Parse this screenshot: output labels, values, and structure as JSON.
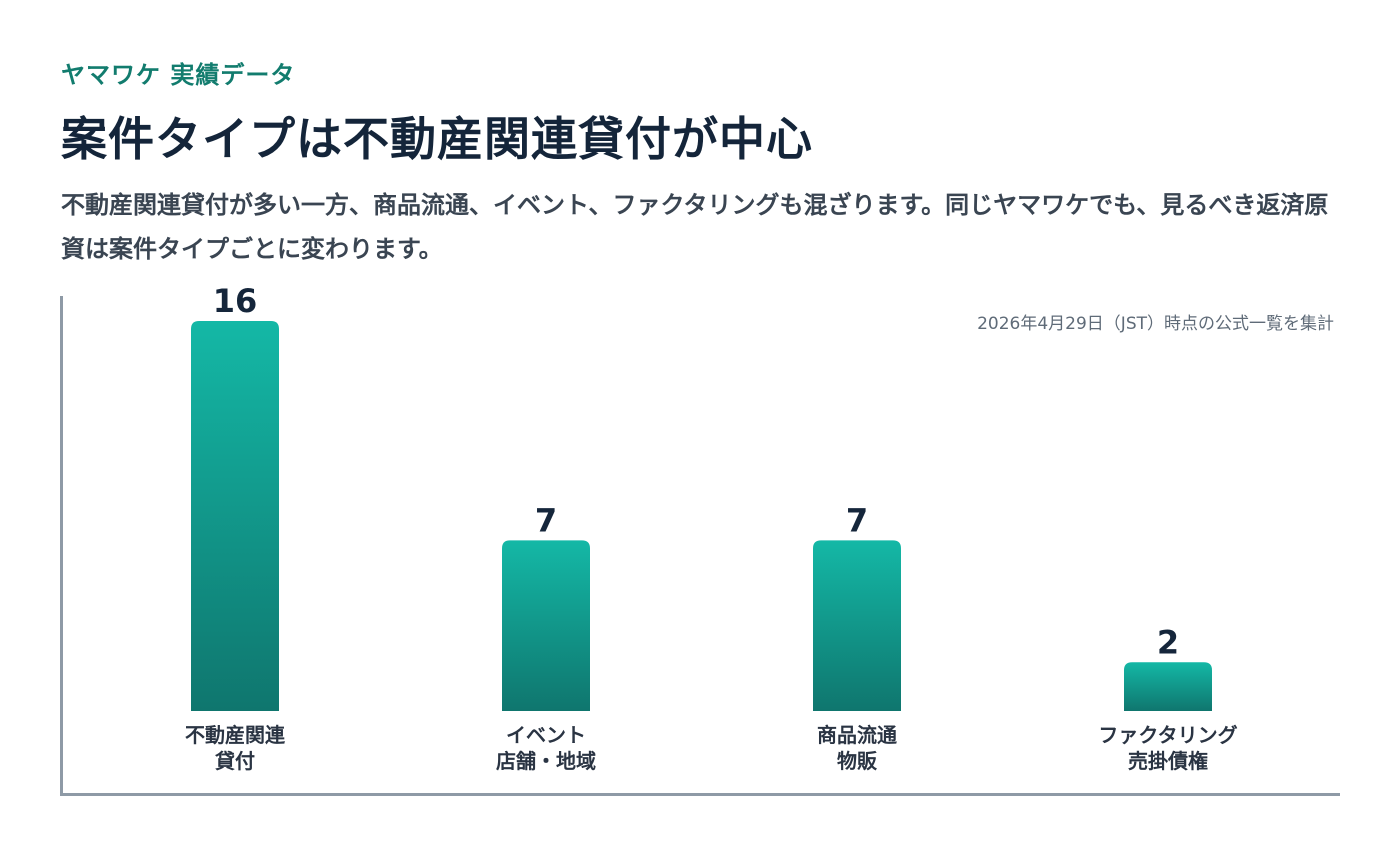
{
  "header": {
    "eyebrow": "ヤマワケ 実績データ",
    "title": "案件タイプは不動産関連貸付が中心",
    "subtitle": "不動産関連貸付が多い一方、商品流通、イベント、ファクタリングも混ざります。同じヤマワケでも、見るべき返済原資は案件タイプごとに変わります。"
  },
  "source_note": "2026年4月29日（JST）時点の公式一覧を集計",
  "colors": {
    "accent": "#127c6e",
    "bar_top": "#14b8a6",
    "bar_bottom": "#0f766e",
    "axis": "#8e9aa6"
  },
  "chart_data": {
    "type": "bar",
    "categories": [
      [
        "不動産関連",
        "貸付"
      ],
      [
        "イベント",
        "店舗・地域"
      ],
      [
        "商品流通",
        "物販"
      ],
      [
        "ファクタリング",
        "売掛債権"
      ]
    ],
    "values": [
      16,
      7,
      7,
      2
    ],
    "data_labels": [
      "16",
      "7",
      "7",
      "2"
    ],
    "title": "",
    "xlabel": "",
    "ylabel": "",
    "ylim": [
      0,
      16
    ],
    "grid": false
  }
}
